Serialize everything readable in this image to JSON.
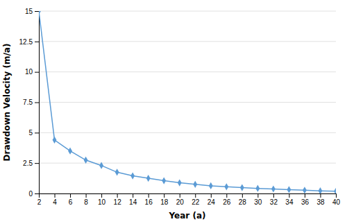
{
  "chart_data": {
    "type": "line",
    "xlabel": "Year (a)",
    "ylabel": "Drawdown Velocity (m/a)",
    "x": [
      2,
      4,
      6,
      8,
      10,
      12,
      14,
      16,
      18,
      20,
      22,
      24,
      26,
      28,
      30,
      32,
      34,
      36,
      38,
      40
    ],
    "values": [
      15.0,
      4.4,
      3.5,
      2.75,
      2.3,
      1.75,
      1.45,
      1.25,
      1.05,
      0.88,
      0.75,
      0.63,
      0.55,
      0.48,
      0.42,
      0.37,
      0.32,
      0.27,
      0.22,
      0.18
    ],
    "color": "#5B9BD5",
    "marker": "diamond",
    "xlim": [
      2,
      40
    ],
    "ylim": [
      0,
      15
    ],
    "xticks": [
      2,
      4,
      6,
      8,
      10,
      12,
      14,
      16,
      18,
      20,
      22,
      24,
      26,
      28,
      30,
      32,
      34,
      36,
      38,
      40
    ],
    "yticks": [
      0,
      2.5,
      5,
      7.5,
      10,
      12.5,
      15
    ],
    "grid": "y"
  }
}
